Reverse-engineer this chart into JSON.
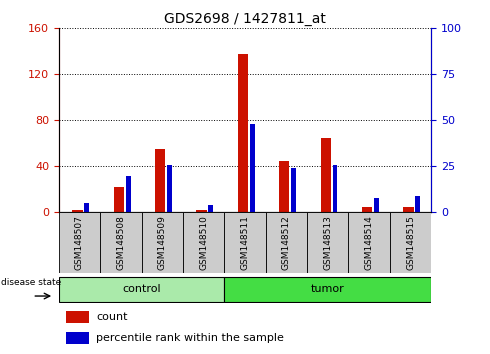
{
  "title": "GDS2698 / 1427811_at",
  "samples": [
    "GSM148507",
    "GSM148508",
    "GSM148509",
    "GSM148510",
    "GSM148511",
    "GSM148512",
    "GSM148513",
    "GSM148514",
    "GSM148515"
  ],
  "count_values": [
    2,
    22,
    55,
    2,
    138,
    45,
    65,
    5,
    5
  ],
  "percentile_values": [
    5,
    20,
    26,
    4,
    48,
    24,
    26,
    8,
    9
  ],
  "groups": [
    {
      "label": "control",
      "indices": [
        0,
        1,
        2,
        3
      ],
      "color": "#aaeaaa"
    },
    {
      "label": "tumor",
      "indices": [
        4,
        5,
        6,
        7,
        8
      ],
      "color": "#44dd44"
    }
  ],
  "left_ylim": [
    0,
    160
  ],
  "right_ylim": [
    0,
    100
  ],
  "left_yticks": [
    0,
    40,
    80,
    120,
    160
  ],
  "right_yticks": [
    0,
    25,
    50,
    75,
    100
  ],
  "red_bar_width": 0.25,
  "blue_bar_width": 0.12,
  "count_color": "#cc1100",
  "percentile_color": "#0000cc",
  "grid_color": "#000000",
  "bg_color": "#ffffff",
  "tick_area_color": "#cccccc",
  "disease_state_label": "disease state",
  "legend_count": "count",
  "legend_percentile": "percentile rank within the sample"
}
